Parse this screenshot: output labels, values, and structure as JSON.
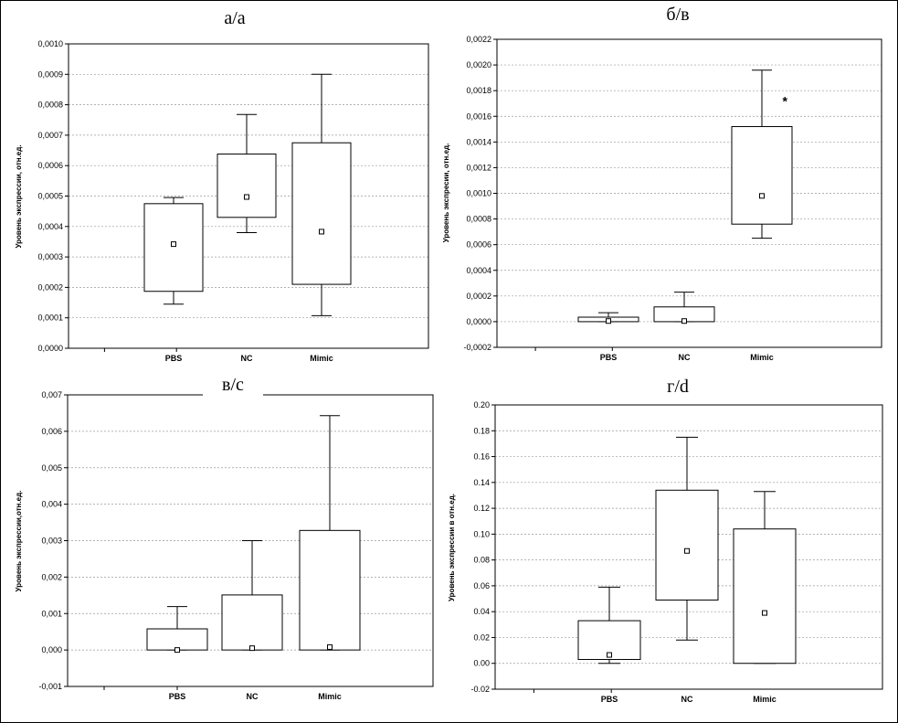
{
  "chart_data": [
    {
      "type": "box",
      "title": "а/а",
      "ylabel": "Уровень экспрессии, отн.ед.",
      "categories": [
        "PBS",
        "NC",
        "Mimic"
      ],
      "ylim": [
        0,
        0.001
      ],
      "yticks": [
        "0,0000",
        "0,0001",
        "0,0002",
        "0,0003",
        "0,0004",
        "0,0005",
        "0,0006",
        "0,0007",
        "0,0008",
        "0,0009",
        "0,0010"
      ],
      "yticks_values": [
        0,
        0.0001,
        0.0002,
        0.0003,
        0.0004,
        0.0005,
        0.0006,
        0.0007,
        0.0008,
        0.0009,
        0.001
      ],
      "boxes": [
        {
          "whisker_low": 0.000145,
          "q1": 0.000187,
          "median": 0.000342,
          "q3": 0.000475,
          "whisker_high": 0.000495
        },
        {
          "whisker_low": 0.00038,
          "q1": 0.00043,
          "median": 0.000497,
          "q3": 0.000638,
          "whisker_high": 0.000768
        },
        {
          "whisker_low": 0.000107,
          "q1": 0.00021,
          "median": 0.000383,
          "q3": 0.000675,
          "whisker_high": 0.0009
        }
      ],
      "annotations": []
    },
    {
      "type": "box",
      "title": "б/в",
      "ylabel": "Уровень экспресии, отн.ед.",
      "categories": [
        "PBS",
        "NC",
        "Mimic"
      ],
      "ylim": [
        -0.0002,
        0.0022
      ],
      "yticks": [
        "-0,0002",
        "0,0000",
        "0,0002",
        "0,0004",
        "0,0006",
        "0,0008",
        "0,0010",
        "0,0012",
        "0,0014",
        "0,0016",
        "0,0018",
        "0,0020",
        "0,0022"
      ],
      "yticks_values": [
        -0.0002,
        0,
        0.0002,
        0.0004,
        0.0006,
        0.0008,
        0.001,
        0.0012,
        0.0014,
        0.0016,
        0.0018,
        0.002,
        0.0022
      ],
      "boxes": [
        {
          "whisker_low": 0.0,
          "q1": 0.0,
          "median": 5e-06,
          "q3": 3.5e-05,
          "whisker_high": 7e-05
        },
        {
          "whisker_low": 0.0,
          "q1": 0.0,
          "median": 5e-06,
          "q3": 0.000115,
          "whisker_high": 0.00023
        },
        {
          "whisker_low": 0.00065,
          "q1": 0.00076,
          "median": 0.00098,
          "q3": 0.00152,
          "whisker_high": 0.00196
        }
      ],
      "annotations": [
        {
          "text": "*",
          "x": 2.3,
          "y": 0.00172
        }
      ]
    },
    {
      "type": "box",
      "title": "в/с",
      "ylabel": "Уровень экспрессии,отн.ед.",
      "categories": [
        "PBS",
        "NC",
        "Mimic"
      ],
      "ylim": [
        -0.001,
        0.007
      ],
      "yticks": [
        "-0,001",
        "0,000",
        "0,001",
        "0,002",
        "0,003",
        "0,004",
        "0,005",
        "0,006",
        "0,007"
      ],
      "yticks_values": [
        -0.001,
        0,
        0.001,
        0.002,
        0.003,
        0.004,
        0.005,
        0.006,
        0.007
      ],
      "boxes": [
        {
          "whisker_low": 0.0,
          "q1": 0.0,
          "median": 0.0,
          "q3": 0.00058,
          "whisker_high": 0.00119
        },
        {
          "whisker_low": 0.0,
          "q1": 0.0,
          "median": 5e-05,
          "q3": 0.00151,
          "whisker_high": 0.003
        },
        {
          "whisker_low": 0.0,
          "q1": 0.0,
          "median": 8e-05,
          "q3": 0.00328,
          "whisker_high": 0.00643
        }
      ],
      "annotations": []
    },
    {
      "type": "box",
      "title": "г/d",
      "ylabel": "Уровень экспрессии в отн.ед.",
      "categories": [
        "PBS",
        "NC",
        "Mimic"
      ],
      "ylim": [
        -0.02,
        0.2
      ],
      "yticks": [
        "-0.02",
        "0.00",
        "0.02",
        "0.04",
        "0.06",
        "0.08",
        "0.10",
        "0.12",
        "0.14",
        "0.16",
        "0.18",
        "0.20"
      ],
      "yticks_values": [
        -0.02,
        0,
        0.02,
        0.04,
        0.06,
        0.08,
        0.1,
        0.12,
        0.14,
        0.16,
        0.18,
        0.2
      ],
      "boxes": [
        {
          "whisker_low": 0.0,
          "q1": 0.003,
          "median": 0.0065,
          "q3": 0.033,
          "whisker_high": 0.059
        },
        {
          "whisker_low": 0.018,
          "q1": 0.049,
          "median": 0.087,
          "q3": 0.134,
          "whisker_high": 0.175
        },
        {
          "whisker_low": 0.0,
          "q1": 0.0,
          "median": 0.039,
          "q3": 0.104,
          "whisker_high": 0.133
        }
      ],
      "annotations": []
    }
  ]
}
